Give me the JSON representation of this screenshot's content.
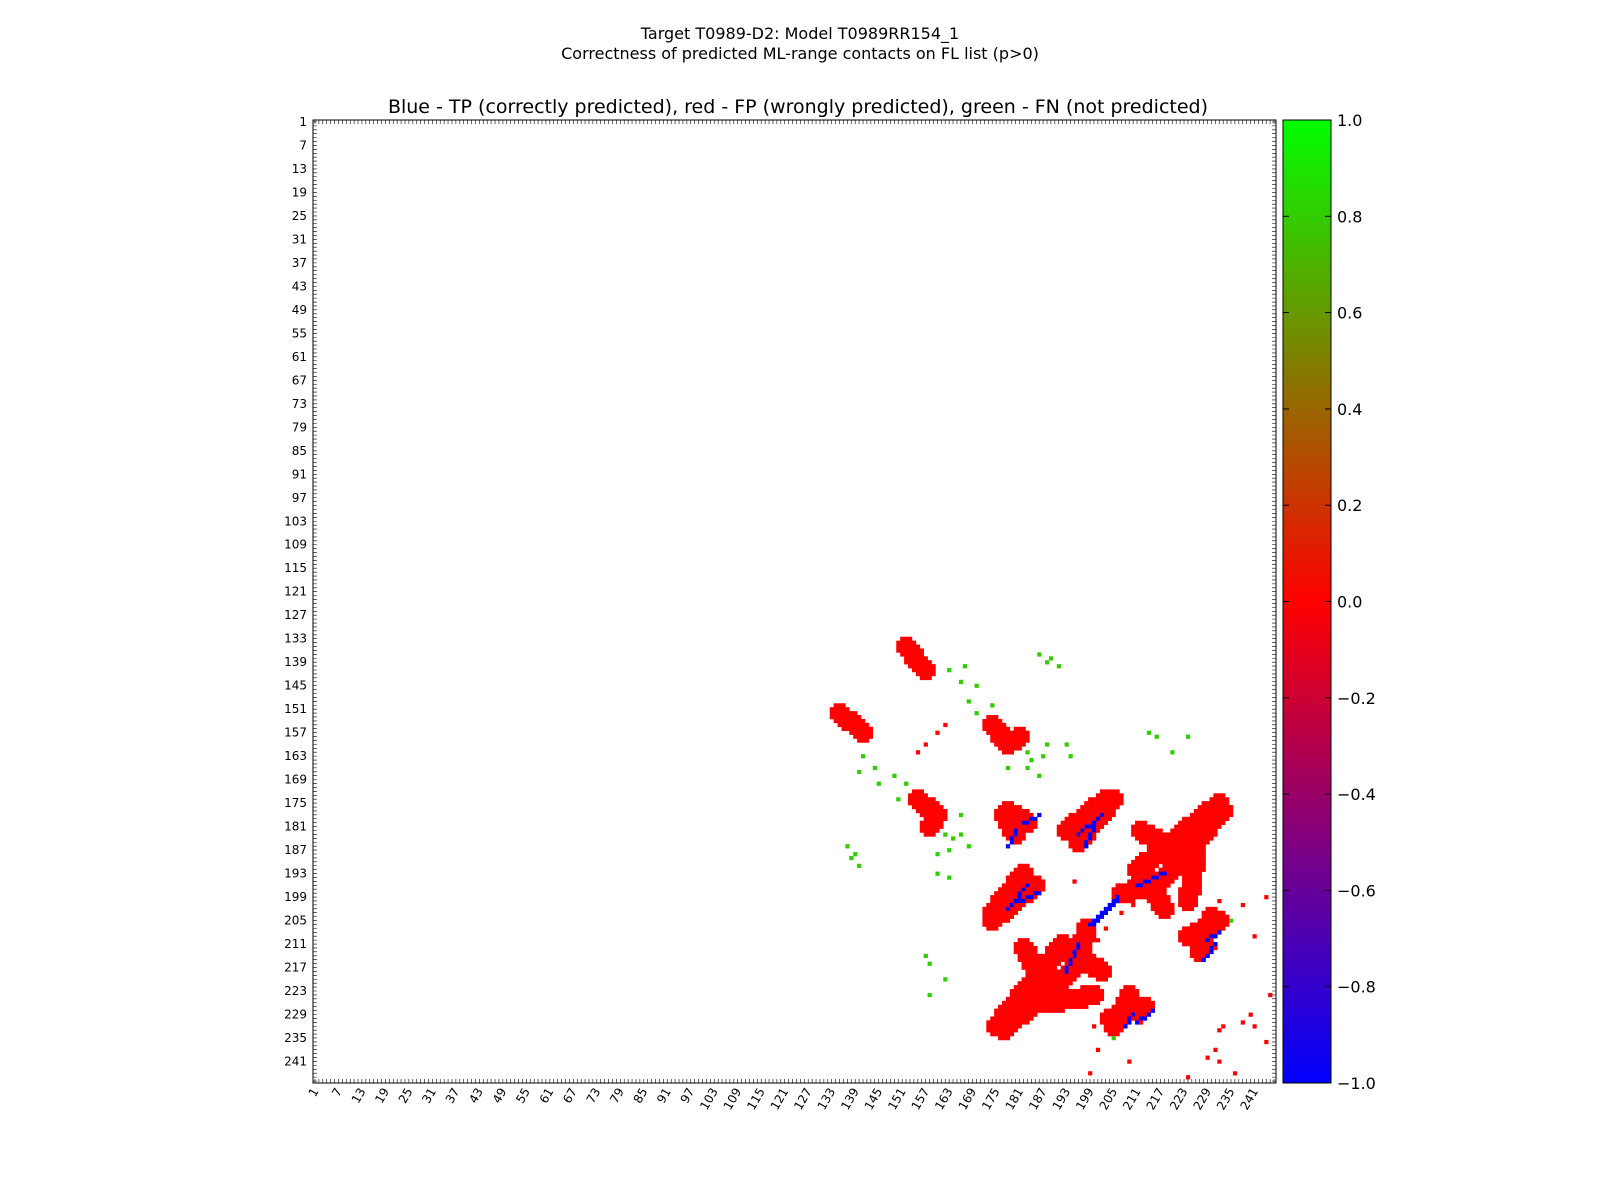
{
  "figure": {
    "title_line1": "Target T0989-D2: Model T0989RR154_1",
    "title_line2": "Correctness of predicted ML-range contacts on FL list (p>0)"
  },
  "chart_data": {
    "type": "heatmap",
    "title": "Blue - TP (correctly predicted), red - FP (wrongly predicted), green - FN (not predicted)",
    "xlabel": "",
    "ylabel": "",
    "xlim": [
      1,
      246
    ],
    "ylim": [
      1,
      246
    ],
    "tick_labels": [
      "1",
      "7",
      "13",
      "19",
      "25",
      "31",
      "37",
      "43",
      "49",
      "55",
      "61",
      "67",
      "73",
      "79",
      "85",
      "91",
      "97",
      "103",
      "109",
      "115",
      "121",
      "127",
      "133",
      "139",
      "145",
      "151",
      "157",
      "163",
      "169",
      "175",
      "181",
      "187",
      "193",
      "199",
      "205",
      "211",
      "217",
      "223",
      "229",
      "235",
      "241"
    ],
    "colorbar": {
      "range": [
        -1.0,
        1.0
      ],
      "ticks": [
        "1.0",
        "0.8",
        "0.6",
        "0.4",
        "0.2",
        "0.0",
        "−0.2",
        "−0.4",
        "−0.6",
        "−0.8",
        "−1.0"
      ],
      "colors": {
        "top": "#00ff00",
        "middle": "#ff0000",
        "bottom": "#0000ff"
      }
    },
    "categories_colors": {
      "TP": "#0000ff",
      "FP": "#ff0000",
      "FN": "#33cc00"
    },
    "fp_strokes": [
      [
        [
          135,
          152
        ],
        [
          139,
          155
        ],
        [
          141,
          157
        ]
      ],
      [
        [
          152,
          135
        ],
        [
          155,
          139
        ],
        [
          157,
          141
        ]
      ],
      [
        [
          174,
          155
        ],
        [
          178,
          160
        ],
        [
          181,
          158
        ]
      ],
      [
        [
          155,
          174
        ],
        [
          160,
          178
        ],
        [
          158,
          181
        ]
      ],
      [
        [
          178,
          177
        ],
        [
          183,
          180
        ]
      ],
      [
        [
          177,
          178
        ],
        [
          180,
          183
        ]
      ],
      [
        [
          174,
          205
        ],
        [
          185,
          196
        ]
      ],
      [
        [
          205,
          174
        ],
        [
          196,
          185
        ]
      ],
      [
        [
          193,
          182
        ],
        [
          203,
          174
        ]
      ],
      [
        [
          182,
          193
        ],
        [
          174,
          203
        ]
      ],
      [
        [
          211,
          192
        ],
        [
          232,
          175
        ]
      ],
      [
        [
          192,
          211
        ],
        [
          175,
          232
        ]
      ],
      [
        [
          212,
          182
        ],
        [
          222,
          188
        ]
      ],
      [
        [
          182,
          212
        ],
        [
          188,
          222
        ]
      ],
      [
        [
          177,
          233
        ],
        [
          196,
          216
        ]
      ],
      [
        [
          233,
          177
        ],
        [
          216,
          196
        ]
      ],
      [
        [
          193,
          212
        ],
        [
          202,
          218
        ]
      ],
      [
        [
          212,
          193
        ],
        [
          218,
          202
        ]
      ],
      [
        [
          224,
          209
        ],
        [
          232,
          205
        ]
      ],
      [
        [
          209,
          224
        ],
        [
          205,
          232
        ]
      ],
      [
        [
          204,
          230
        ],
        [
          213,
          227
        ]
      ],
      [
        [
          230,
          204
        ],
        [
          227,
          213
        ]
      ],
      [
        [
          188,
          226
        ],
        [
          200,
          224
        ]
      ],
      [
        [
          226,
          188
        ],
        [
          224,
          200
        ]
      ],
      [
        [
          207,
          198
        ],
        [
          216,
          196
        ]
      ],
      [
        [
          198,
          207
        ],
        [
          196,
          216
        ]
      ]
    ],
    "tp_strokes": [
      [
        [
          196,
          183
        ],
        [
          202,
          178
        ]
      ],
      [
        [
          183,
          196
        ],
        [
          178,
          202
        ]
      ],
      [
        [
          182,
          180
        ],
        [
          186,
          178
        ]
      ],
      [
        [
          180,
          182
        ],
        [
          178,
          186
        ]
      ],
      [
        [
          211,
          196
        ],
        [
          218,
          193
        ]
      ],
      [
        [
          196,
          211
        ],
        [
          193,
          218
        ]
      ],
      [
        [
          199,
          206
        ],
        [
          206,
          200
        ]
      ],
      [
        [
          206,
          199
        ],
        [
          200,
          206
        ]
      ],
      [
        [
          229,
          210
        ],
        [
          232,
          208
        ]
      ],
      [
        [
          210,
          229
        ],
        [
          208,
          232
        ]
      ],
      [
        [
          211,
          231
        ],
        [
          215,
          228
        ]
      ],
      [
        [
          231,
          211
        ],
        [
          228,
          215
        ]
      ],
      [
        [
          181,
          200
        ],
        [
          186,
          198
        ]
      ],
      [
        [
          200,
          181
        ],
        [
          198,
          186
        ]
      ]
    ],
    "fp_points": [
      [
        201,
        210
      ],
      [
        210,
        201
      ],
      [
        207,
        203
      ],
      [
        203,
        207
      ],
      [
        200,
        232
      ],
      [
        232,
        200
      ],
      [
        201,
        238
      ],
      [
        238,
        201
      ],
      [
        195,
        195
      ],
      [
        224,
        245
      ],
      [
        245,
        224
      ],
      [
        199,
        244
      ],
      [
        244,
        199
      ],
      [
        212,
        231
      ],
      [
        231,
        212
      ],
      [
        209,
        241
      ],
      [
        241,
        209
      ],
      [
        232,
        233
      ],
      [
        233,
        232
      ],
      [
        240,
        229
      ],
      [
        229,
        240
      ],
      [
        238,
        231
      ],
      [
        231,
        238
      ],
      [
        232,
        241
      ],
      [
        241,
        232
      ],
      [
        244,
        236
      ],
      [
        236,
        244
      ],
      [
        157,
        160
      ],
      [
        160,
        157
      ],
      [
        155,
        162
      ],
      [
        162,
        155
      ]
    ],
    "fn_points": [
      [
        141,
        163
      ],
      [
        163,
        141
      ],
      [
        144,
        166
      ],
      [
        166,
        144
      ],
      [
        149,
        168
      ],
      [
        168,
        149
      ],
      [
        152,
        170
      ],
      [
        170,
        152
      ],
      [
        156,
        172
      ],
      [
        172,
        156
      ],
      [
        160,
        180
      ],
      [
        180,
        160
      ],
      [
        163,
        187
      ],
      [
        187,
        163
      ],
      [
        137,
        186
      ],
      [
        186,
        137
      ],
      [
        139,
        188
      ],
      [
        188,
        139
      ],
      [
        166,
        178
      ],
      [
        178,
        166
      ],
      [
        167,
        140
      ],
      [
        140,
        167
      ],
      [
        170,
        145
      ],
      [
        145,
        170
      ],
      [
        174,
        150
      ],
      [
        150,
        174
      ],
      [
        176,
        155
      ],
      [
        155,
        176
      ],
      [
        183,
        162
      ],
      [
        162,
        183
      ],
      [
        188,
        160
      ],
      [
        160,
        188
      ],
      [
        189,
        138
      ],
      [
        138,
        189
      ],
      [
        191,
        140
      ],
      [
        140,
        191
      ],
      [
        158,
        216
      ],
      [
        216,
        158
      ],
      [
        162,
        220
      ],
      [
        220,
        162
      ],
      [
        158,
        224
      ],
      [
        224,
        158
      ],
      [
        157,
        214
      ],
      [
        214,
        157
      ],
      [
        183,
        166
      ],
      [
        166,
        183
      ],
      [
        186,
        168
      ],
      [
        168,
        186
      ],
      [
        194,
        163
      ],
      [
        163,
        194
      ],
      [
        160,
        193
      ],
      [
        193,
        160
      ],
      [
        184,
        164
      ],
      [
        164,
        184
      ],
      [
        202,
        175
      ],
      [
        175,
        202
      ],
      [
        230,
        202
      ],
      [
        202,
        230
      ],
      [
        235,
        205
      ],
      [
        205,
        235
      ]
    ]
  }
}
